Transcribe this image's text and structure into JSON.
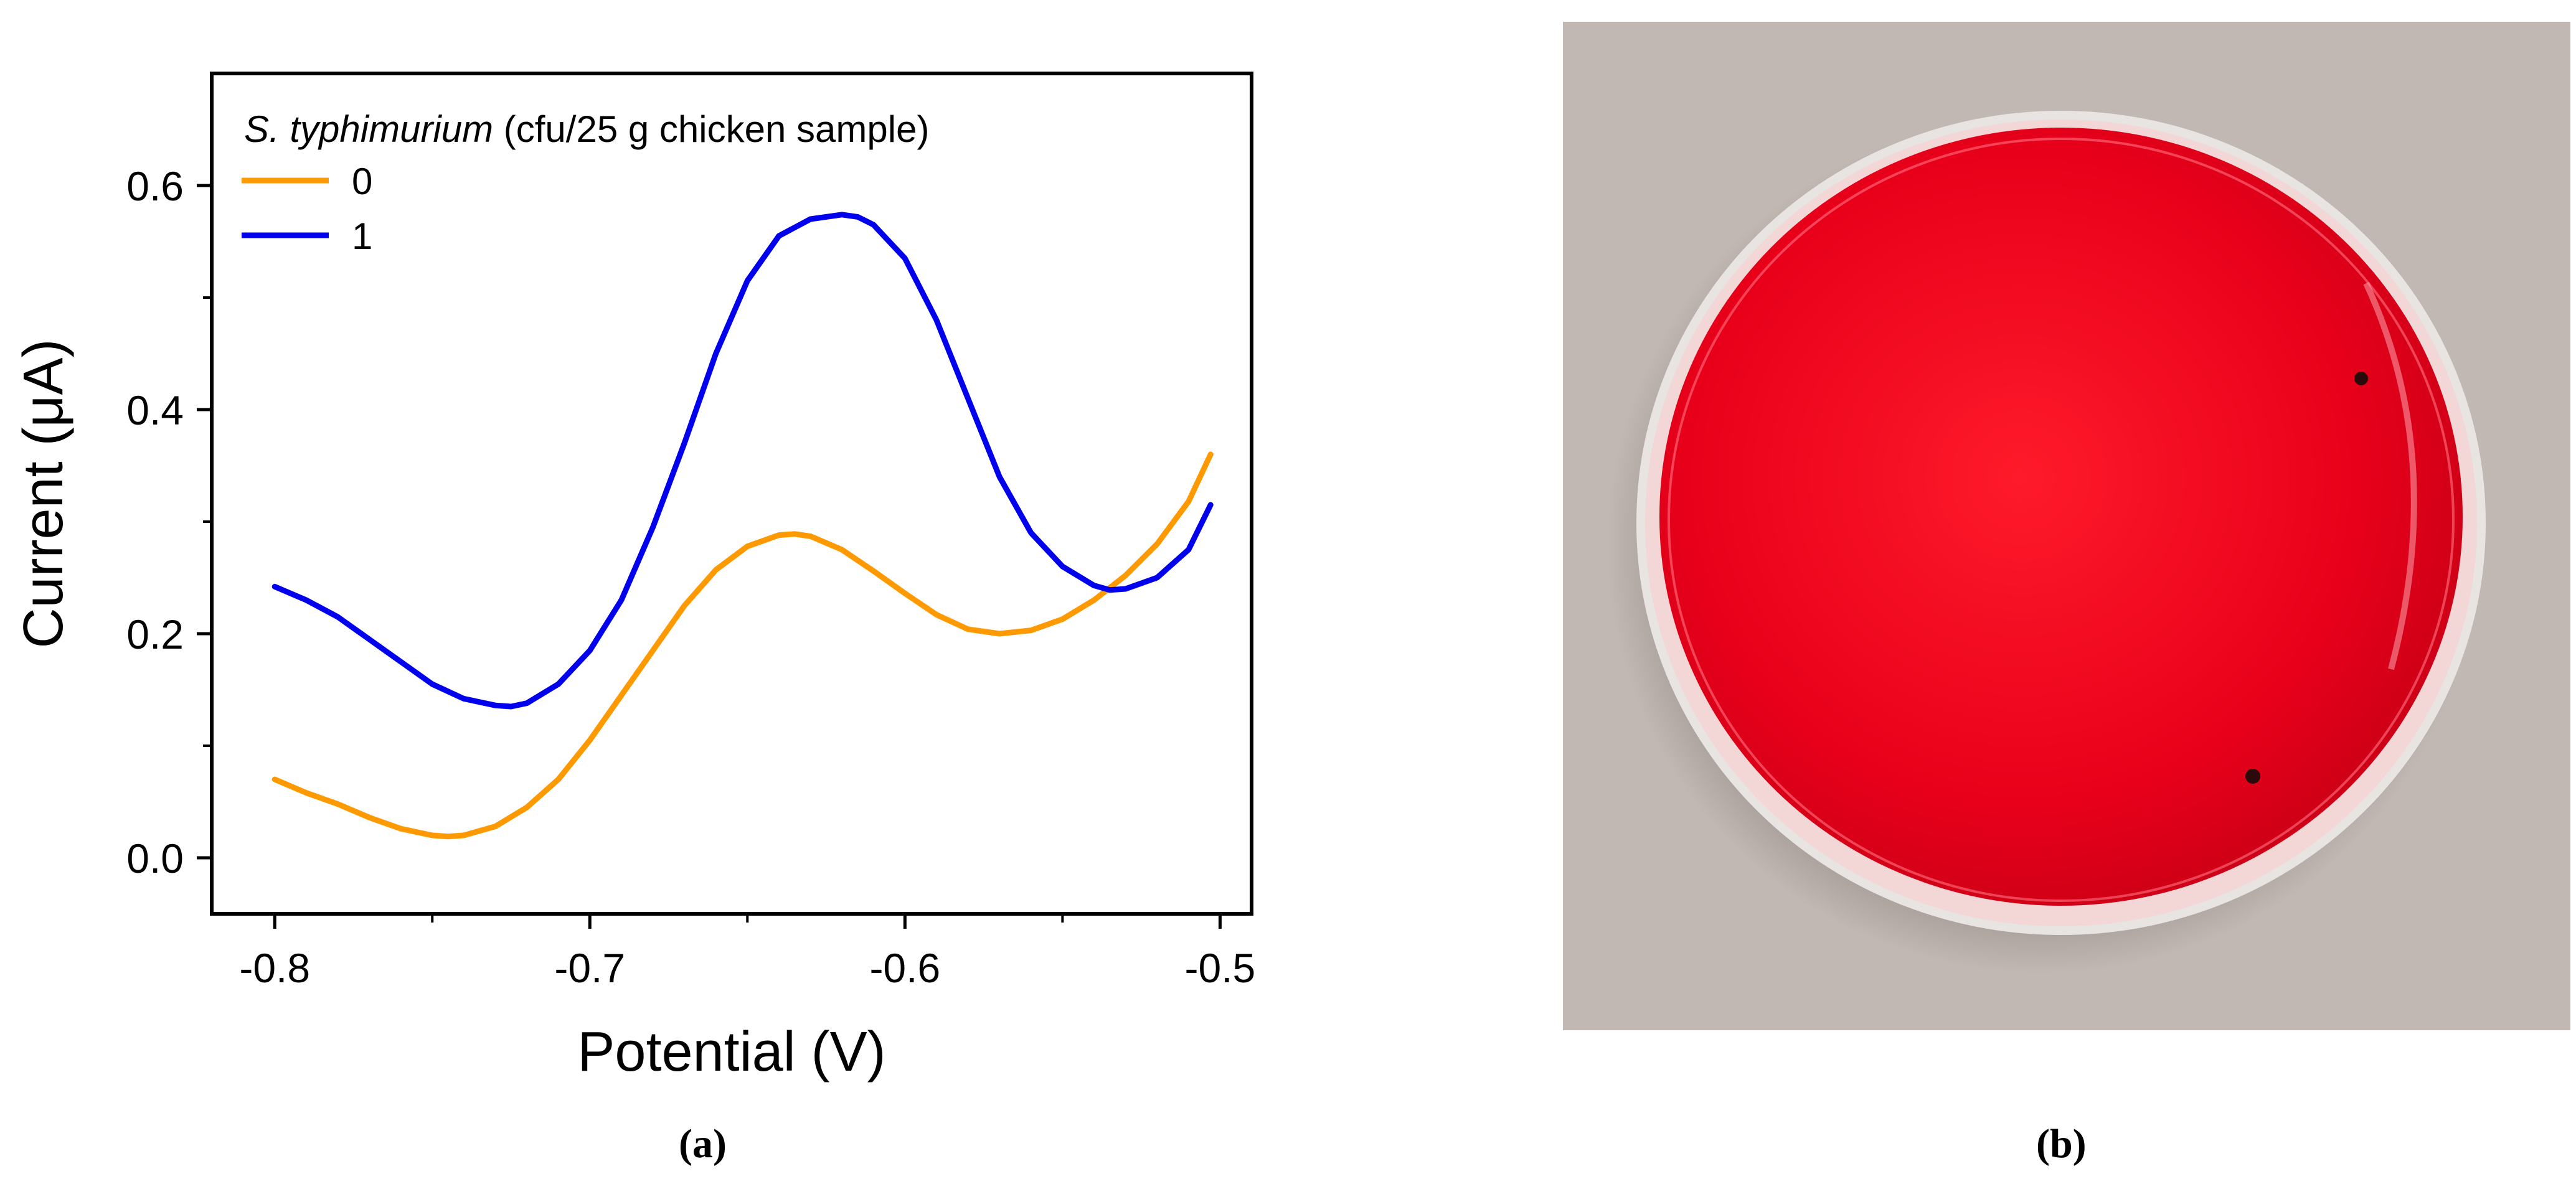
{
  "figure": {
    "caption_a": "(a)",
    "caption_b": "(b)"
  },
  "chart_data": {
    "type": "line",
    "title": "",
    "xlabel": "Potential (V)",
    "ylabel": "Current (μA)",
    "xlim": [
      -0.82,
      -0.49
    ],
    "ylim": [
      -0.05,
      0.7
    ],
    "x_ticks": [
      -0.8,
      -0.7,
      -0.6,
      -0.5
    ],
    "x_tick_labels": [
      "-0.8",
      "-0.7",
      "-0.6",
      "-0.5"
    ],
    "y_ticks": [
      0.0,
      0.2,
      0.4,
      0.6
    ],
    "y_tick_labels": [
      "0.0",
      "0.2",
      "0.4",
      "0.6"
    ],
    "grid": false,
    "legend": {
      "placement": "top-left",
      "title_italic": "S. typhimurium",
      "title_rest": " (cfu/25 g chicken sample)"
    },
    "series": [
      {
        "name": "0",
        "color": "#ff9900",
        "x": [
          -0.8,
          -0.79,
          -0.78,
          -0.77,
          -0.76,
          -0.75,
          -0.745,
          -0.74,
          -0.73,
          -0.72,
          -0.71,
          -0.7,
          -0.69,
          -0.68,
          -0.67,
          -0.66,
          -0.65,
          -0.64,
          -0.635,
          -0.63,
          -0.62,
          -0.61,
          -0.6,
          -0.59,
          -0.58,
          -0.57,
          -0.56,
          -0.55,
          -0.54,
          -0.53,
          -0.52,
          -0.51,
          -0.503
        ],
        "y": [
          0.07,
          0.058,
          0.048,
          0.036,
          0.026,
          0.02,
          0.019,
          0.02,
          0.028,
          0.045,
          0.07,
          0.105,
          0.145,
          0.185,
          0.225,
          0.257,
          0.278,
          0.288,
          0.289,
          0.287,
          0.275,
          0.256,
          0.236,
          0.217,
          0.204,
          0.2,
          0.203,
          0.213,
          0.23,
          0.252,
          0.28,
          0.318,
          0.36
        ]
      },
      {
        "name": "1",
        "color": "#0000ee",
        "x": [
          -0.8,
          -0.79,
          -0.78,
          -0.77,
          -0.76,
          -0.75,
          -0.74,
          -0.73,
          -0.725,
          -0.72,
          -0.71,
          -0.7,
          -0.69,
          -0.68,
          -0.67,
          -0.66,
          -0.65,
          -0.64,
          -0.63,
          -0.62,
          -0.615,
          -0.61,
          -0.6,
          -0.59,
          -0.58,
          -0.57,
          -0.56,
          -0.55,
          -0.54,
          -0.535,
          -0.53,
          -0.52,
          -0.51,
          -0.503
        ],
        "y": [
          0.242,
          0.23,
          0.215,
          0.195,
          0.175,
          0.155,
          0.142,
          0.136,
          0.135,
          0.138,
          0.155,
          0.185,
          0.23,
          0.295,
          0.37,
          0.45,
          0.515,
          0.555,
          0.57,
          0.574,
          0.572,
          0.565,
          0.535,
          0.48,
          0.41,
          0.34,
          0.29,
          0.26,
          0.243,
          0.239,
          0.24,
          0.25,
          0.275,
          0.315
        ]
      }
    ]
  },
  "photo": {
    "icon": "petri-dish-icon",
    "background_color": "#c2b8b3",
    "agar_color": "#e8001a"
  }
}
